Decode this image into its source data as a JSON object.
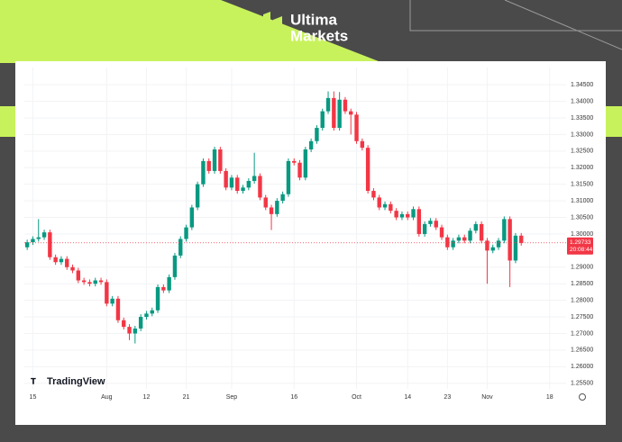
{
  "brand": {
    "line1": "Ultima",
    "line2": "Markets"
  },
  "chart_data": {
    "type": "candlestick",
    "watermark": "TradingView",
    "up_color": "#089981",
    "down_color": "#f23645",
    "open": [
      1.296,
      1.2975,
      1.2985,
      1.299,
      1.3005,
      1.293,
      1.2915,
      1.2925,
      1.29,
      1.289,
      1.286,
      1.2855,
      1.285,
      1.286,
      1.2855,
      1.279,
      1.2805,
      1.274,
      1.272,
      1.27,
      1.2715,
      1.275,
      1.276,
      1.277,
      1.284,
      1.283,
      1.287,
      1.2935,
      1.2985,
      1.302,
      1.308,
      1.315,
      1.322,
      1.319,
      1.3255,
      1.319,
      1.314,
      1.317,
      1.313,
      1.314,
      1.316,
      1.3175,
      1.311,
      1.308,
      1.306,
      1.31,
      1.312,
      1.322,
      1.3215,
      1.317,
      1.3255,
      1.328,
      1.332,
      1.337,
      1.341,
      1.332,
      1.3405,
      1.337,
      1.336,
      1.328,
      1.326,
      1.313,
      1.311,
      1.308,
      1.309,
      1.307,
      1.305,
      1.306,
      1.305,
      1.3075,
      1.3,
      1.303,
      1.304,
      1.302,
      1.299,
      1.296,
      1.298,
      1.299,
      1.298,
      1.301,
      1.303,
      1.298,
      1.295,
      1.296,
      1.298,
      1.3045,
      1.292,
      1.2995
    ],
    "high": [
      1.2983,
      1.2993,
      1.3045,
      1.3013,
      1.3013,
      1.2938,
      1.2933,
      1.2933,
      1.2908,
      1.2898,
      1.2868,
      1.2863,
      1.2868,
      1.2868,
      1.2863,
      1.2813,
      1.2813,
      1.2748,
      1.2728,
      1.2723,
      1.2758,
      1.2768,
      1.2778,
      1.2848,
      1.2848,
      1.2878,
      1.2943,
      1.2993,
      1.3028,
      1.3088,
      1.3158,
      1.3228,
      1.3228,
      1.3263,
      1.3263,
      1.3198,
      1.3178,
      1.3178,
      1.3148,
      1.3168,
      1.3245,
      1.3183,
      1.3118,
      1.3088,
      1.3108,
      1.3128,
      1.3228,
      1.3228,
      1.3223,
      1.3263,
      1.3288,
      1.3328,
      1.3378,
      1.343,
      1.343,
      1.3428,
      1.3413,
      1.3378,
      1.3368,
      1.3288,
      1.3268,
      1.3138,
      1.3118,
      1.3098,
      1.3098,
      1.3078,
      1.3068,
      1.3068,
      1.3083,
      1.3083,
      1.3038,
      1.3048,
      1.3048,
      1.3028,
      1.2998,
      1.2988,
      1.2998,
      1.2998,
      1.3018,
      1.3038,
      1.3038,
      1.2988,
      1.2968,
      1.2988,
      1.3053,
      1.3053,
      1.3003,
      1.3003
    ],
    "low": [
      1.2952,
      1.2967,
      1.2977,
      1.2982,
      1.2922,
      1.2907,
      1.2907,
      1.2892,
      1.2882,
      1.2852,
      1.2847,
      1.2842,
      1.2842,
      1.2847,
      1.2782,
      1.2782,
      1.2732,
      1.2712,
      1.268,
      1.267,
      1.2707,
      1.2742,
      1.2752,
      1.2762,
      1.2822,
      1.2822,
      1.2862,
      1.2927,
      1.2977,
      1.3012,
      1.3072,
      1.3142,
      1.3182,
      1.3182,
      1.3182,
      1.3132,
      1.3132,
      1.3122,
      1.3122,
      1.3132,
      1.3152,
      1.3102,
      1.3072,
      1.3012,
      1.3052,
      1.3092,
      1.3112,
      1.3207,
      1.3162,
      1.3162,
      1.3247,
      1.3272,
      1.3312,
      1.3362,
      1.3312,
      1.3312,
      1.3362,
      1.33,
      1.3272,
      1.3252,
      1.3122,
      1.3102,
      1.3072,
      1.3072,
      1.3062,
      1.3042,
      1.3042,
      1.3042,
      1.3042,
      1.2992,
      1.2992,
      1.3022,
      1.3012,
      1.2982,
      1.2952,
      1.2952,
      1.2972,
      1.2972,
      1.2972,
      1.3002,
      1.2972,
      1.285,
      1.2942,
      1.2952,
      1.2972,
      1.284,
      1.2912,
      1.2965
    ],
    "close": [
      1.2975,
      1.2985,
      1.299,
      1.3005,
      1.293,
      1.2915,
      1.2925,
      1.29,
      1.289,
      1.286,
      1.2855,
      1.285,
      1.286,
      1.2855,
      1.279,
      1.2805,
      1.274,
      1.272,
      1.27,
      1.2715,
      1.275,
      1.276,
      1.277,
      1.284,
      1.283,
      1.287,
      1.2935,
      1.2985,
      1.302,
      1.308,
      1.315,
      1.322,
      1.319,
      1.3255,
      1.319,
      1.314,
      1.317,
      1.313,
      1.314,
      1.316,
      1.3175,
      1.311,
      1.308,
      1.306,
      1.31,
      1.312,
      1.322,
      1.3215,
      1.317,
      1.3255,
      1.328,
      1.332,
      1.337,
      1.341,
      1.332,
      1.3405,
      1.337,
      1.336,
      1.328,
      1.326,
      1.313,
      1.311,
      1.308,
      1.309,
      1.307,
      1.305,
      1.306,
      1.305,
      1.3075,
      1.3,
      1.303,
      1.304,
      1.302,
      1.299,
      1.296,
      1.298,
      1.299,
      1.298,
      1.301,
      1.303,
      1.298,
      1.295,
      1.296,
      1.298,
      1.3045,
      1.292,
      1.2995,
      1.2973
    ],
    "xlim": [
      -0.5,
      94.9
    ],
    "xticks": [
      {
        "value": 1,
        "label": "15"
      },
      {
        "value": 14,
        "label": "Aug"
      },
      {
        "value": 21,
        "label": "12"
      },
      {
        "value": 28,
        "label": "21"
      },
      {
        "value": 36,
        "label": "Sep"
      },
      {
        "value": 47,
        "label": "16"
      },
      {
        "value": 58,
        "label": "Oct"
      },
      {
        "value": 67,
        "label": "14"
      },
      {
        "value": 74,
        "label": "23"
      },
      {
        "value": 81,
        "label": "Nov"
      },
      {
        "value": 92,
        "label": "18"
      }
    ],
    "ylim": [
      1.2533,
      1.3502
    ],
    "yticks": [
      {
        "value": 1.345,
        "label": "1.34500"
      },
      {
        "value": 1.34,
        "label": "1.34000"
      },
      {
        "value": 1.335,
        "label": "1.33500"
      },
      {
        "value": 1.33,
        "label": "1.33000"
      },
      {
        "value": 1.325,
        "label": "1.32500"
      },
      {
        "value": 1.32,
        "label": "1.32000"
      },
      {
        "value": 1.315,
        "label": "1.31500"
      },
      {
        "value": 1.31,
        "label": "1.31000"
      },
      {
        "value": 1.305,
        "label": "1.30500"
      },
      {
        "value": 1.3,
        "label": "1.30000"
      },
      {
        "value": 1.29,
        "label": "1.29000"
      },
      {
        "value": 1.285,
        "label": "1.28500"
      },
      {
        "value": 1.28,
        "label": "1.28000"
      },
      {
        "value": 1.275,
        "label": "1.27500"
      },
      {
        "value": 1.27,
        "label": "1.27000"
      },
      {
        "value": 1.265,
        "label": "1.26500"
      },
      {
        "value": 1.26,
        "label": "1.26000"
      },
      {
        "value": 1.255,
        "label": "1.25500"
      }
    ],
    "last_price": 1.29733,
    "countdown": "20:08:44",
    "grid": true
  }
}
